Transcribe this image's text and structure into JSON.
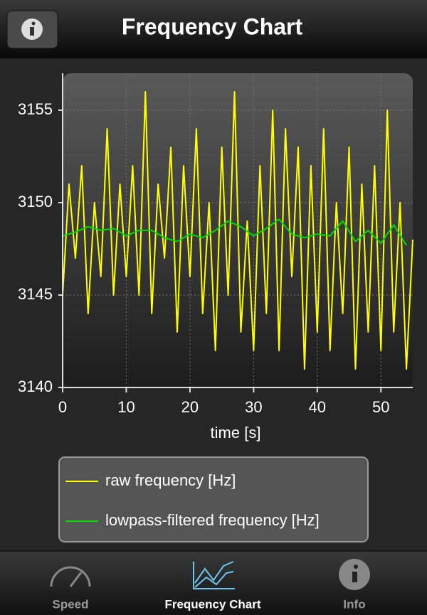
{
  "header": {
    "title": "Frequency Chart"
  },
  "chart_data": {
    "type": "line",
    "x_label": "time [s]",
    "xlim": [
      0,
      55
    ],
    "xticks": [
      0,
      10,
      20,
      30,
      40,
      50
    ],
    "ylim": [
      3140,
      3157
    ],
    "yticks": [
      3140,
      3145,
      3150,
      3155
    ],
    "grid": true,
    "series": [
      {
        "name": "raw frequency [Hz]",
        "color": "#ffff00",
        "x": [
          0,
          1,
          2,
          3,
          4,
          5,
          6,
          7,
          8,
          9,
          10,
          11,
          12,
          13,
          14,
          15,
          16,
          17,
          18,
          19,
          20,
          21,
          22,
          23,
          24,
          25,
          26,
          27,
          28,
          29,
          30,
          31,
          32,
          33,
          34,
          35,
          36,
          37,
          38,
          39,
          40,
          41,
          42,
          43,
          44,
          45,
          46,
          47,
          48,
          49,
          50,
          51,
          52,
          53,
          54,
          55
        ],
        "values": [
          3145,
          3151,
          3147,
          3152,
          3144,
          3150,
          3146,
          3154,
          3145,
          3151,
          3146,
          3152,
          3145,
          3156,
          3144,
          3151,
          3147,
          3153,
          3143,
          3152,
          3146,
          3154,
          3144,
          3150,
          3142,
          3153,
          3145,
          3156,
          3143,
          3149,
          3142,
          3152,
          3144,
          3155,
          3142,
          3154,
          3146,
          3153,
          3141,
          3152,
          3143,
          3154,
          3142,
          3150,
          3144,
          3153,
          3141,
          3151,
          3143,
          3152,
          3142,
          3155,
          3143,
          3150,
          3141,
          3148
        ]
      },
      {
        "name": "lowpass-filtered frequency [Hz]",
        "color": "#00dd00",
        "x": [
          0,
          2,
          4,
          6,
          8,
          10,
          12,
          14,
          16,
          18,
          20,
          22,
          24,
          26,
          28,
          30,
          32,
          34,
          36,
          38,
          40,
          42,
          44,
          46,
          48,
          50,
          52,
          54
        ],
        "values": [
          3148.2,
          3148.4,
          3148.7,
          3148.5,
          3148.6,
          3148.2,
          3148.5,
          3148.5,
          3148.1,
          3147.9,
          3148.3,
          3148.1,
          3148.5,
          3149.0,
          3148.7,
          3148.2,
          3148.6,
          3149.1,
          3148.3,
          3148.1,
          3148.3,
          3148.2,
          3149.0,
          3147.9,
          3148.5,
          3147.8,
          3148.8,
          3147.7
        ]
      }
    ]
  },
  "tab_bar": {
    "tabs": [
      "Speed",
      "Frequency Chart",
      "Info"
    ]
  }
}
